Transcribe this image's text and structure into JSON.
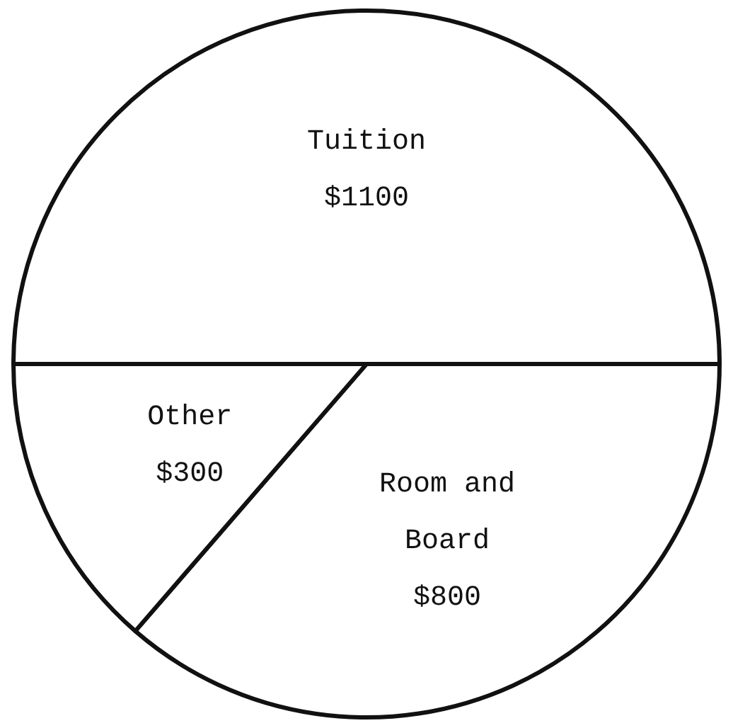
{
  "chart_data": {
    "type": "pie",
    "categories": [
      "Tuition",
      "Room and Board",
      "Other"
    ],
    "values": [
      1100,
      800,
      300
    ],
    "colors": [
      "#ffffff",
      "#ffffff",
      "#ffffff"
    ],
    "value_labels": [
      "$1100",
      "$800",
      "$300"
    ],
    "legend": false
  }
}
